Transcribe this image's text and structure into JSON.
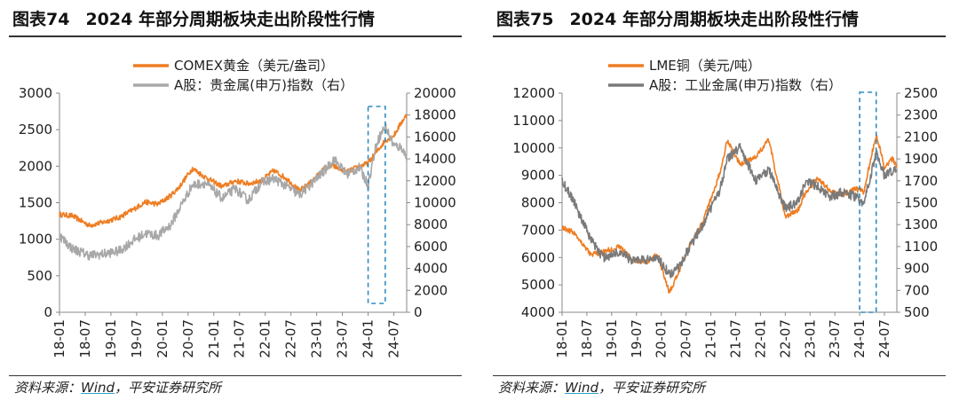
{
  "source_prefix": "资料来源：",
  "source_wind": "Wind",
  "source_suffix": "，平安证券研究所",
  "colors": {
    "orange": "#ee7d22",
    "gray_light": "#a8a8a8",
    "gray_dark": "#7a7a7a",
    "box": "#2e8bc0"
  },
  "chart_data": [
    {
      "type": "line",
      "figure": "图表74",
      "title": "2024 年部分周期板块走出阶段性行情",
      "x_ticks": [
        "18-01",
        "18-07",
        "19-01",
        "19-07",
        "20-01",
        "20-07",
        "21-01",
        "21-07",
        "22-01",
        "22-07",
        "23-01",
        "23-07",
        "24-01",
        "24-07"
      ],
      "x_range": [
        "2018-01",
        "2024-10"
      ],
      "y_left_ticks": [
        0,
        500,
        1000,
        1500,
        2000,
        2500,
        3000
      ],
      "y_left_range": [
        0,
        3000
      ],
      "y_right_ticks": [
        0,
        2000,
        4000,
        6000,
        8000,
        10000,
        12000,
        14000,
        16000,
        18000,
        20000
      ],
      "y_right_range": [
        0,
        20000
      ],
      "legend_placement": "top-center",
      "highlight_range": [
        "2024-01",
        "2024-05"
      ],
      "series": [
        {
          "name": "COMEX黄金（美元/盎司）",
          "axis": "left",
          "color": "#ee7d22",
          "x": [
            "2018-01",
            "2018-04",
            "2018-08",
            "2018-11",
            "2019-03",
            "2019-06",
            "2019-09",
            "2019-12",
            "2020-03",
            "2020-05",
            "2020-08",
            "2020-11",
            "2021-03",
            "2021-06",
            "2021-09",
            "2021-12",
            "2022-03",
            "2022-06",
            "2022-09",
            "2022-12",
            "2023-03",
            "2023-05",
            "2023-08",
            "2023-11",
            "2024-01",
            "2024-03",
            "2024-05",
            "2024-07",
            "2024-09",
            "2024-10"
          ],
          "y": [
            1340,
            1320,
            1190,
            1230,
            1300,
            1400,
            1510,
            1480,
            1600,
            1720,
            1970,
            1850,
            1720,
            1800,
            1760,
            1800,
            1940,
            1830,
            1660,
            1800,
            1980,
            2000,
            1920,
            2000,
            2040,
            2200,
            2350,
            2420,
            2620,
            2700
          ]
        },
        {
          "name": "A股：贵金属(申万)指数（右）",
          "axis": "right",
          "color": "#a8a8a8",
          "x": [
            "2018-01",
            "2018-04",
            "2018-08",
            "2018-11",
            "2019-03",
            "2019-06",
            "2019-09",
            "2019-12",
            "2020-03",
            "2020-05",
            "2020-08",
            "2020-11",
            "2021-03",
            "2021-06",
            "2021-09",
            "2021-12",
            "2022-03",
            "2022-06",
            "2022-09",
            "2022-12",
            "2023-03",
            "2023-05",
            "2023-08",
            "2023-11",
            "2024-01",
            "2024-03",
            "2024-05",
            "2024-07",
            "2024-09",
            "2024-10"
          ],
          "y": [
            7000,
            5800,
            5200,
            5300,
            5600,
            6500,
            7200,
            7000,
            8000,
            9500,
            11600,
            11800,
            10400,
            11300,
            10200,
            11800,
            12200,
            11500,
            10700,
            11800,
            13000,
            14000,
            12600,
            13200,
            11600,
            15500,
            17000,
            15200,
            15000,
            14000
          ]
        }
      ]
    },
    {
      "type": "line",
      "figure": "图表75",
      "title": "2024 年部分周期板块走出阶段性行情",
      "x_ticks": [
        "18-01",
        "18-07",
        "19-01",
        "19-07",
        "20-01",
        "20-07",
        "21-01",
        "21-07",
        "22-01",
        "22-07",
        "23-01",
        "23-07",
        "24-01",
        "24-07"
      ],
      "x_range": [
        "2018-01",
        "2024-10"
      ],
      "y_left_ticks": [
        4000,
        5000,
        6000,
        7000,
        8000,
        9000,
        10000,
        11000,
        12000
      ],
      "y_left_range": [
        4000,
        12000
      ],
      "y_right_ticks": [
        500,
        700,
        900,
        1100,
        1300,
        1500,
        1700,
        1900,
        2100,
        2300,
        2500
      ],
      "y_right_range": [
        500,
        2500
      ],
      "legend_placement": "top-center",
      "highlight_range": [
        "2024-01",
        "2024-05"
      ],
      "series": [
        {
          "name": "LME铜（美元/吨）",
          "axis": "left",
          "color": "#ee7d22",
          "x": [
            "2018-01",
            "2018-04",
            "2018-08",
            "2018-11",
            "2019-03",
            "2019-06",
            "2019-09",
            "2019-12",
            "2020-03",
            "2020-05",
            "2020-08",
            "2020-11",
            "2021-03",
            "2021-05",
            "2021-08",
            "2021-12",
            "2022-03",
            "2022-07",
            "2022-10",
            "2022-12",
            "2023-03",
            "2023-06",
            "2023-09",
            "2023-12",
            "2024-02",
            "2024-05",
            "2024-07",
            "2024-09",
            "2024-10"
          ],
          "y": [
            7100,
            6900,
            6100,
            6200,
            6400,
            5900,
            5800,
            6100,
            4700,
            5400,
            6500,
            7300,
            9000,
            10300,
            9400,
            9700,
            10300,
            7500,
            7700,
            8400,
            8900,
            8400,
            8300,
            8500,
            8400,
            10500,
            9300,
            9600,
            9300
          ]
        },
        {
          "name": "A股：工业金属(申万)指数（右）",
          "axis": "right",
          "color": "#7a7a7a",
          "x": [
            "2018-01",
            "2018-04",
            "2018-08",
            "2018-11",
            "2019-03",
            "2019-06",
            "2019-09",
            "2019-12",
            "2020-03",
            "2020-05",
            "2020-08",
            "2020-11",
            "2021-03",
            "2021-05",
            "2021-08",
            "2021-12",
            "2022-03",
            "2022-07",
            "2022-10",
            "2022-12",
            "2023-03",
            "2023-06",
            "2023-09",
            "2023-12",
            "2024-02",
            "2024-05",
            "2024-07",
            "2024-09",
            "2024-10"
          ],
          "y": [
            1700,
            1500,
            1150,
            1000,
            1050,
            970,
            980,
            1000,
            850,
            900,
            1100,
            1300,
            1600,
            1900,
            2000,
            1700,
            1800,
            1450,
            1500,
            1700,
            1650,
            1550,
            1600,
            1550,
            1500,
            1950,
            1750,
            1800,
            1800
          ]
        }
      ]
    }
  ]
}
